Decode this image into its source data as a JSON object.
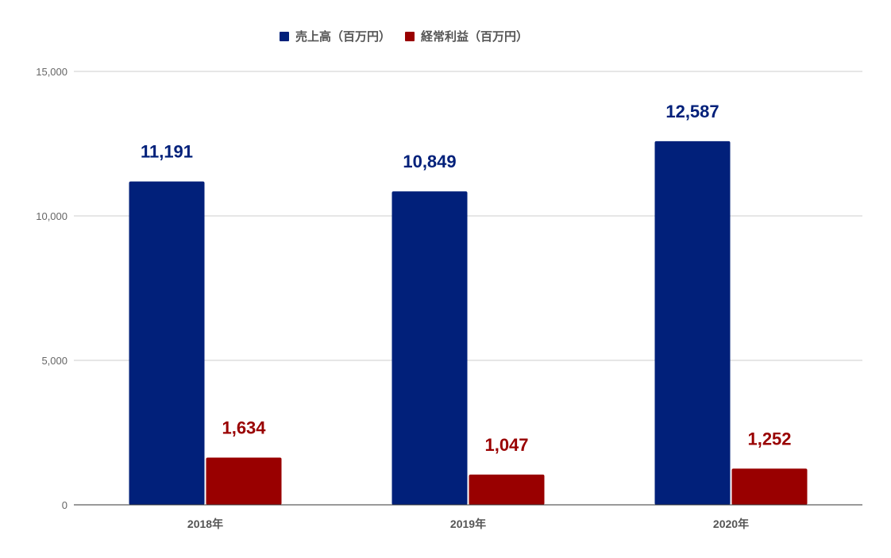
{
  "chart_data": {
    "type": "bar",
    "categories": [
      "2018年",
      "2019年",
      "2020年"
    ],
    "series": [
      {
        "name": "売上高（百万円）",
        "values": [
          11191,
          10849,
          12587
        ],
        "labels": [
          "11,191",
          "10,849",
          "12,587"
        ],
        "color": "#01207a"
      },
      {
        "name": "経常利益（百万円）",
        "values": [
          1634,
          1047,
          1252
        ],
        "labels": [
          "1,634",
          "1,047",
          "1,252"
        ],
        "color": "#990000"
      }
    ],
    "ylim": [
      0,
      15000
    ],
    "y_ticks": [
      0,
      5000,
      10000,
      15000
    ],
    "y_tick_labels": [
      "0",
      "5,000",
      "10,000",
      "15,000"
    ],
    "grid": true,
    "legend_position": "top-center",
    "title": "",
    "xlabel": "",
    "ylabel": ""
  }
}
